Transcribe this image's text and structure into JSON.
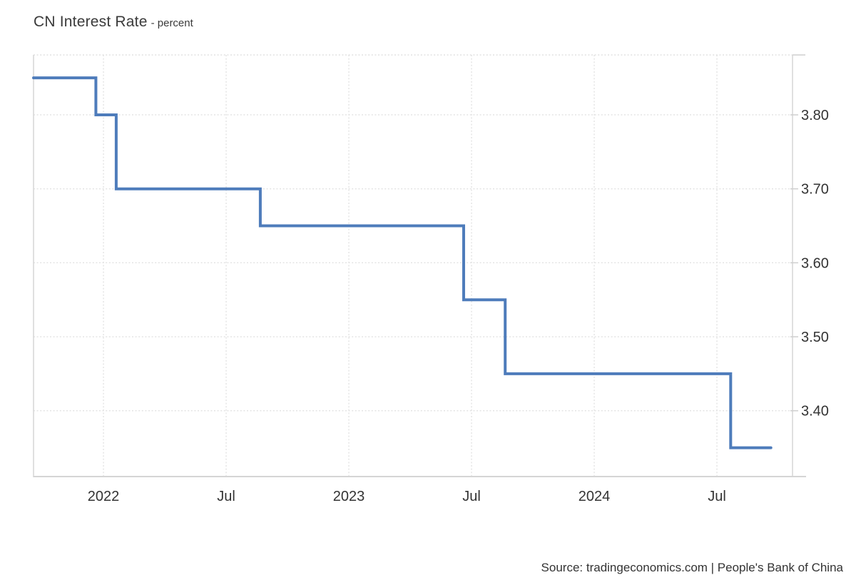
{
  "header": {
    "title": "CN Interest Rate",
    "subtitle": "- percent"
  },
  "footer": {
    "source": "Source: tradingeconomics.com | People's Bank of China"
  },
  "colors": {
    "line": "#4e7cbb",
    "grid": "#e2e2e2",
    "border": "#d5d5d5",
    "tick": "#cfcfcf",
    "text": "#333333",
    "title_text": "#3a3a3a",
    "background": "#ffffff"
  },
  "chart_data": {
    "type": "line",
    "step": true,
    "title": "CN Interest Rate",
    "unit": "percent",
    "xlabel": "",
    "ylabel": "",
    "grid": "dotted",
    "legend": "none",
    "xlim": [
      2021.715,
      2024.808
    ],
    "ylim": [
      3.311,
      3.881
    ],
    "x_ticks": [
      {
        "x": 2022.0,
        "label": "2022"
      },
      {
        "x": 2022.5,
        "label": "Jul"
      },
      {
        "x": 2023.0,
        "label": "2023"
      },
      {
        "x": 2023.5,
        "label": "Jul"
      },
      {
        "x": 2024.0,
        "label": "2024"
      },
      {
        "x": 2024.5,
        "label": "Jul"
      }
    ],
    "y_ticks": [
      {
        "value": 3.4,
        "label": "3.40"
      },
      {
        "value": 3.5,
        "label": "3.50"
      },
      {
        "value": 3.6,
        "label": "3.60"
      },
      {
        "value": 3.7,
        "label": "3.70"
      },
      {
        "value": 3.8,
        "label": "3.80"
      }
    ],
    "series": [
      {
        "name": "CN Interest Rate",
        "points": [
          {
            "x": 2021.715,
            "date": "2021-09",
            "value": 3.85
          },
          {
            "x": 2021.969,
            "date": "2021-12-20",
            "value": 3.8
          },
          {
            "x": 2022.052,
            "date": "2022-01-20",
            "value": 3.7
          },
          {
            "x": 2022.639,
            "date": "2022-08-22",
            "value": 3.65
          },
          {
            "x": 2023.468,
            "date": "2023-06-20",
            "value": 3.55
          },
          {
            "x": 2023.637,
            "date": "2023-08-21",
            "value": 3.45
          },
          {
            "x": 2024.556,
            "date": "2024-07-22",
            "value": 3.35
          },
          {
            "x": 2024.72,
            "date": "2024-09",
            "value": 3.35
          }
        ]
      }
    ]
  }
}
